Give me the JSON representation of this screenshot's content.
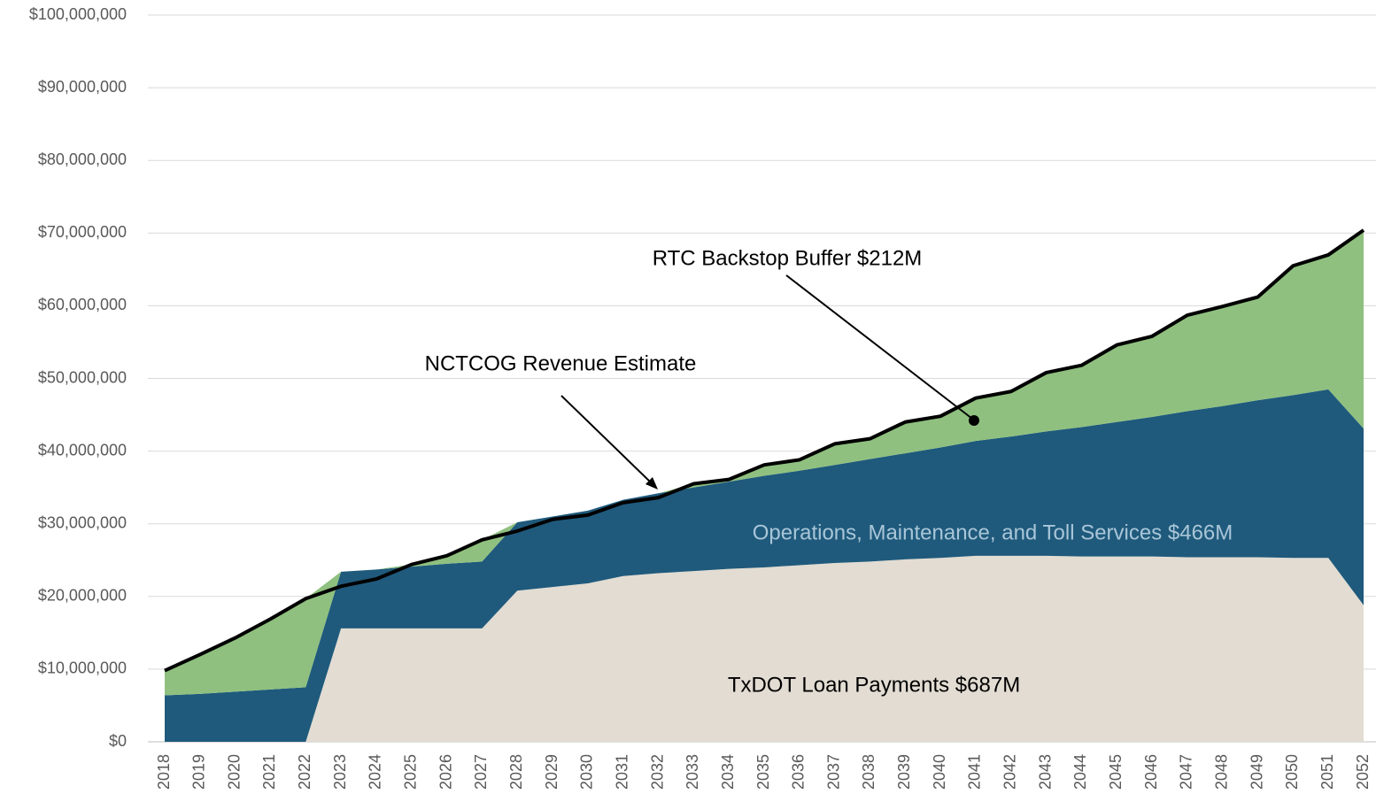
{
  "chart_data": {
    "type": "area",
    "stacked": true,
    "grid": true,
    "categories": [
      "2018",
      "2019",
      "2020",
      "2021",
      "2022",
      "2023",
      "2024",
      "2025",
      "2026",
      "2027",
      "2028",
      "2029",
      "2030",
      "2031",
      "2032",
      "2033",
      "2034",
      "2035",
      "2036",
      "2037",
      "2038",
      "2039",
      "2040",
      "2041",
      "2042",
      "2043",
      "2044",
      "2045",
      "2046",
      "2047",
      "2048",
      "2049",
      "2050",
      "2051",
      "2052"
    ],
    "series": [
      {
        "type": "area",
        "color": "#e2dcd2",
        "values": [
          0,
          0,
          0,
          0,
          0,
          15600000,
          15600000,
          15600000,
          15600000,
          15600000,
          20800000,
          21300000,
          21800000,
          22800000,
          23200000,
          23500000,
          23800000,
          24000000,
          24300000,
          24600000,
          24800000,
          25100000,
          25300000,
          25600000,
          25600000,
          25600000,
          25500000,
          25500000,
          25500000,
          25400000,
          25400000,
          25400000,
          25300000,
          25300000,
          18800000
        ]
      },
      {
        "type": "area",
        "color": "#1f5a7c",
        "values": [
          6400000,
          6600000,
          6900000,
          7200000,
          7500000,
          7800000,
          8100000,
          8500000,
          8900000,
          9200000,
          9400000,
          9700000,
          10000000,
          10500000,
          11000000,
          11500000,
          12000000,
          12600000,
          13000000,
          13500000,
          14100000,
          14600000,
          15200000,
          15800000,
          16400000,
          17100000,
          17800000,
          18500000,
          19200000,
          20100000,
          20800000,
          21600000,
          22400000,
          23200000,
          24300000
        ]
      },
      {
        "type": "area",
        "color": "#8fc07f",
        "values": [
          3400000,
          5400000,
          7400000,
          9700000,
          12200000,
          0,
          0,
          300000,
          1100000,
          3000000,
          0,
          0,
          0,
          0,
          0,
          500000,
          300000,
          1500000,
          1500000,
          2900000,
          2800000,
          4300000,
          4300000,
          5900000,
          6200000,
          8100000,
          8500000,
          10600000,
          11100000,
          13200000,
          13700000,
          14200000,
          17800000,
          18500000,
          27300000
        ]
      },
      {
        "type": "line",
        "color": "#000000",
        "values": [
          9800000,
          12000000,
          14300000,
          16900000,
          19700000,
          21400000,
          22400000,
          24400000,
          25600000,
          27800000,
          29000000,
          30600000,
          31200000,
          32900000,
          33600000,
          35500000,
          36100000,
          38100000,
          38800000,
          41000000,
          41700000,
          44000000,
          44800000,
          47300000,
          48200000,
          50800000,
          51800000,
          54600000,
          55800000,
          58700000,
          59900000,
          61200000,
          65500000,
          67000000,
          70400000
        ]
      }
    ],
    "ylim": [
      0,
      100000000
    ],
    "yticks": [
      {
        "value": 0,
        "label": "$0"
      },
      {
        "value": 10000000,
        "label": "$10,000,000"
      },
      {
        "value": 20000000,
        "label": "$20,000,000"
      },
      {
        "value": 30000000,
        "label": "$30,000,000"
      },
      {
        "value": 40000000,
        "label": "$40,000,000"
      },
      {
        "value": 50000000,
        "label": "$50,000,000"
      },
      {
        "value": 60000000,
        "label": "$60,000,000"
      },
      {
        "value": 70000000,
        "label": "$70,000,000"
      },
      {
        "value": 80000000,
        "label": "$80,000,000"
      },
      {
        "value": 90000000,
        "label": "$90,000,000"
      },
      {
        "value": 100000000,
        "label": "$100,000,000"
      }
    ],
    "annotations": [
      "RTC Backstop Buffer $212M",
      "NCTCOG Revenue Estimate",
      "Operations, Maintenance, and Toll Services $466M",
      "TxDOT Loan Payments $687M"
    ]
  }
}
